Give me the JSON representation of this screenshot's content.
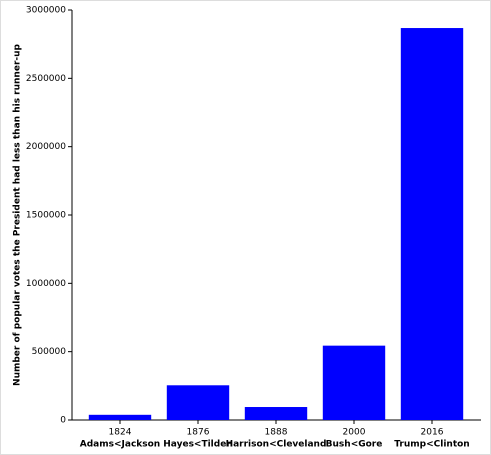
{
  "chart_data": {
    "type": "bar",
    "y_label": "Number of popular votes the President had less than his runner-up",
    "categories": [
      "1824",
      "1876",
      "1888",
      "2000",
      "2016"
    ],
    "matchups": [
      "Adams<Jackson",
      "Hayes<Tilden",
      "Harrison<Cleveland",
      "Bush<Gore",
      "Trump<Clinton"
    ],
    "values": [
      38000,
      254000,
      95000,
      544000,
      2868000
    ],
    "color": "#0000ff",
    "ylim": [
      0,
      3000000
    ],
    "yticks": [
      0,
      500000,
      1000000,
      1500000,
      2000000,
      2500000,
      3000000
    ]
  }
}
